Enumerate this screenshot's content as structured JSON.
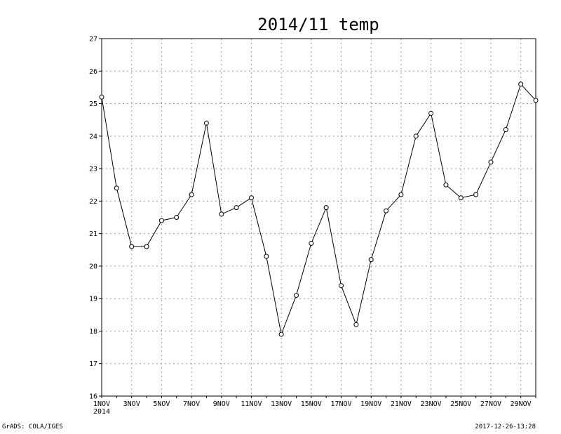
{
  "chart_data": {
    "type": "line",
    "title": "2014/11 temp",
    "xlabel": "",
    "ylabel": "",
    "x": [
      "1NOV",
      "2NOV",
      "3NOV",
      "4NOV",
      "5NOV",
      "6NOV",
      "7NOV",
      "8NOV",
      "9NOV",
      "10NOV",
      "11NOV",
      "12NOV",
      "13NOV",
      "14NOV",
      "15NOV",
      "16NOV",
      "17NOV",
      "18NOV",
      "19NOV",
      "20NOV",
      "21NOV",
      "22NOV",
      "23NOV",
      "24NOV",
      "25NOV",
      "26NOV",
      "27NOV",
      "28NOV",
      "29NOV",
      "30NOV"
    ],
    "values": [
      25.2,
      22.4,
      20.6,
      20.6,
      21.4,
      21.5,
      22.2,
      24.4,
      21.6,
      21.8,
      22.1,
      20.3,
      17.9,
      19.1,
      20.7,
      21.8,
      19.4,
      18.2,
      20.2,
      21.7,
      22.2,
      24.0,
      24.7,
      22.5,
      22.1,
      22.2,
      23.2,
      24.2,
      25.6,
      25.1
    ],
    "ylim": [
      16,
      27
    ],
    "yticks": [
      "16",
      "17",
      "18",
      "19",
      "20",
      "21",
      "22",
      "23",
      "24",
      "25",
      "26",
      "27"
    ],
    "xtick_labels": [
      "1NOV",
      "3NOV",
      "5NOV",
      "7NOV",
      "9NOV",
      "11NOV",
      "13NOV",
      "15NOV",
      "17NOV",
      "19NOV",
      "21NOV",
      "23NOV",
      "25NOV",
      "27NOV",
      "29NOV"
    ],
    "year_label": "2014",
    "grid": true,
    "line_color": "#000000",
    "grid_color": "#999999"
  },
  "footer": {
    "left": "GrADS: COLA/IGES",
    "right": "2017-12-26-13:28"
  }
}
